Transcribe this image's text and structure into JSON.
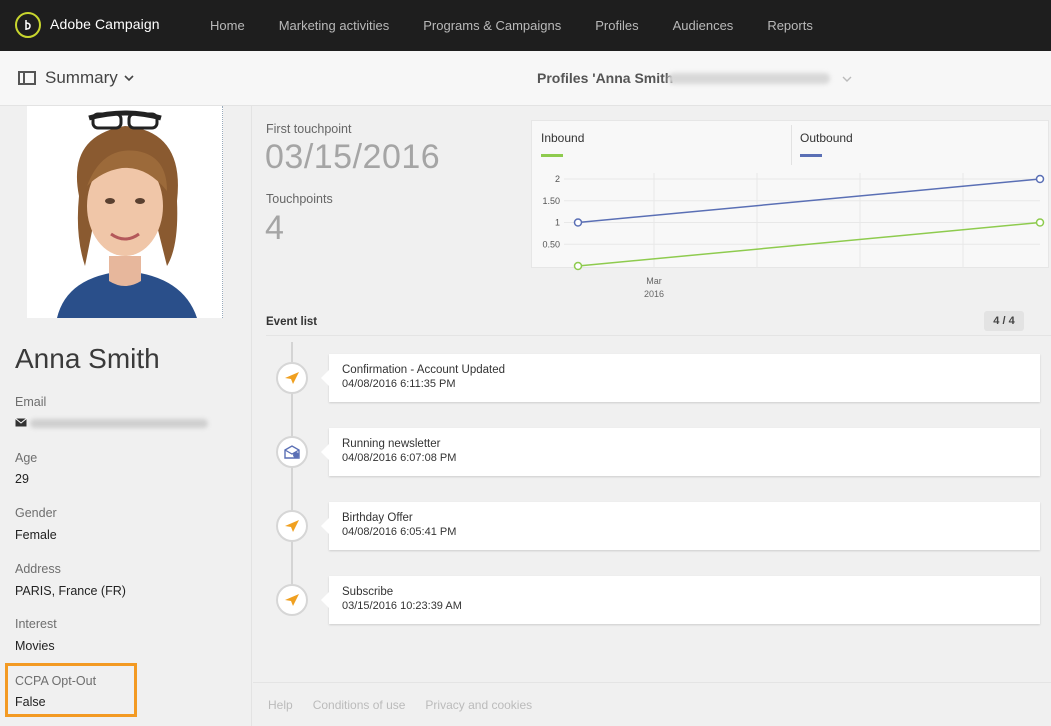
{
  "app": {
    "brand": "Adobe Campaign",
    "logo_icon": "adobe-campaign-logo-icon"
  },
  "nav": {
    "items": [
      "Home",
      "Marketing activities",
      "Programs & Campaigns",
      "Profiles",
      "Audiences",
      "Reports"
    ]
  },
  "header": {
    "summary_label": "Summary",
    "profile_title": "Profiles 'Anna Smith"
  },
  "profile": {
    "name": "Anna Smith",
    "fields": [
      {
        "label": "Email",
        "value": ""
      },
      {
        "label": "Age",
        "value": "29"
      },
      {
        "label": "Gender",
        "value": "Female"
      },
      {
        "label": "Address",
        "value": "PARIS, France (FR)"
      },
      {
        "label": "Interest",
        "value": "Movies"
      },
      {
        "label": "CCPA Opt-Out",
        "value": "False"
      }
    ],
    "highlight_color": "#f39a23"
  },
  "stats": {
    "first_touchpoint_label": "First touchpoint",
    "first_touchpoint_value": "03/15/2016",
    "touchpoints_label": "Touchpoints",
    "touchpoints_value": "4"
  },
  "chart_data": {
    "type": "line",
    "x": [
      "start",
      "end"
    ],
    "x_tick_labels": [
      "Mar",
      "2016"
    ],
    "y_ticks": [
      "2",
      "1.50",
      "1",
      "0.50"
    ],
    "ylim": [
      0,
      2
    ],
    "series": [
      {
        "name": "Inbound",
        "color": "#8ecb4e",
        "values": [
          0,
          1
        ]
      },
      {
        "name": "Outbound",
        "color": "#5a6fb5",
        "values": [
          1,
          2
        ]
      }
    ],
    "legend": "top",
    "grid": true
  },
  "events": {
    "header": "Event list",
    "count": "4 / 4",
    "items": [
      {
        "title": "Confirmation - Account Updated",
        "date": "04/08/2016 6:11:35 PM",
        "icon": "send-icon"
      },
      {
        "title": "Running newsletter",
        "date": "04/08/2016 6:07:08 PM",
        "icon": "newsletter-icon"
      },
      {
        "title": "Birthday Offer",
        "date": "04/08/2016 6:05:41 PM",
        "icon": "send-icon"
      },
      {
        "title": "Subscribe",
        "date": "03/15/2016 10:23:39 AM",
        "icon": "send-icon"
      }
    ]
  },
  "footer": {
    "links": [
      "Help",
      "Conditions of use",
      "Privacy and cookies"
    ]
  }
}
